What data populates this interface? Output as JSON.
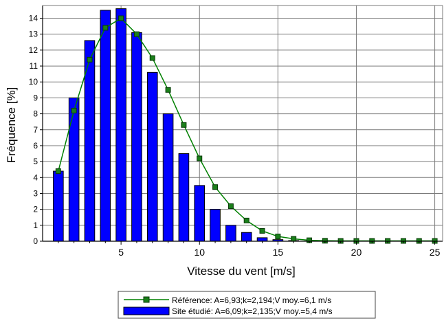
{
  "chart_data": {
    "type": "bar",
    "xlabel": "Vitesse du vent [m/s]",
    "ylabel": "Fréquence [%]",
    "xlim": [
      0,
      25.5
    ],
    "ylim": [
      0,
      14.8
    ],
    "x_ticks": [
      5,
      10,
      15,
      20,
      25
    ],
    "y_ticks": [
      0,
      1,
      2,
      3,
      4,
      5,
      6,
      7,
      8,
      9,
      10,
      11,
      12,
      13,
      14
    ],
    "grid": true,
    "legend_position": "bottom-center",
    "x": [
      1,
      2,
      3,
      4,
      5,
      6,
      7,
      8,
      9,
      10,
      11,
      12,
      13,
      14,
      15,
      16,
      17,
      18,
      19,
      20,
      21,
      22,
      23,
      24,
      25
    ],
    "series": [
      {
        "name": "Site étudié: A=6,09;k=2,135;V moy.=5,4 m/s",
        "kind": "bar",
        "color": "#0000ff",
        "values": [
          4.4,
          9.0,
          12.6,
          14.5,
          14.6,
          13.1,
          10.6,
          8.0,
          5.5,
          3.5,
          2.0,
          1.0,
          0.55,
          0.22,
          0.1,
          0.04,
          0.01,
          0,
          0,
          0,
          0,
          0,
          0,
          0,
          0
        ]
      },
      {
        "name": "Référence: A=6,93;k=2,194;V moy.=6,1 m/s",
        "kind": "line",
        "color": "#008000",
        "marker_color": "#1a7f1a",
        "values": [
          4.4,
          8.2,
          11.4,
          13.4,
          14.0,
          13.0,
          11.5,
          9.5,
          7.3,
          5.2,
          3.4,
          2.2,
          1.3,
          0.65,
          0.3,
          0.15,
          0.06,
          0.03,
          0.02,
          0.02,
          0.02,
          0.02,
          0.02,
          0.02,
          0.02
        ]
      }
    ]
  }
}
